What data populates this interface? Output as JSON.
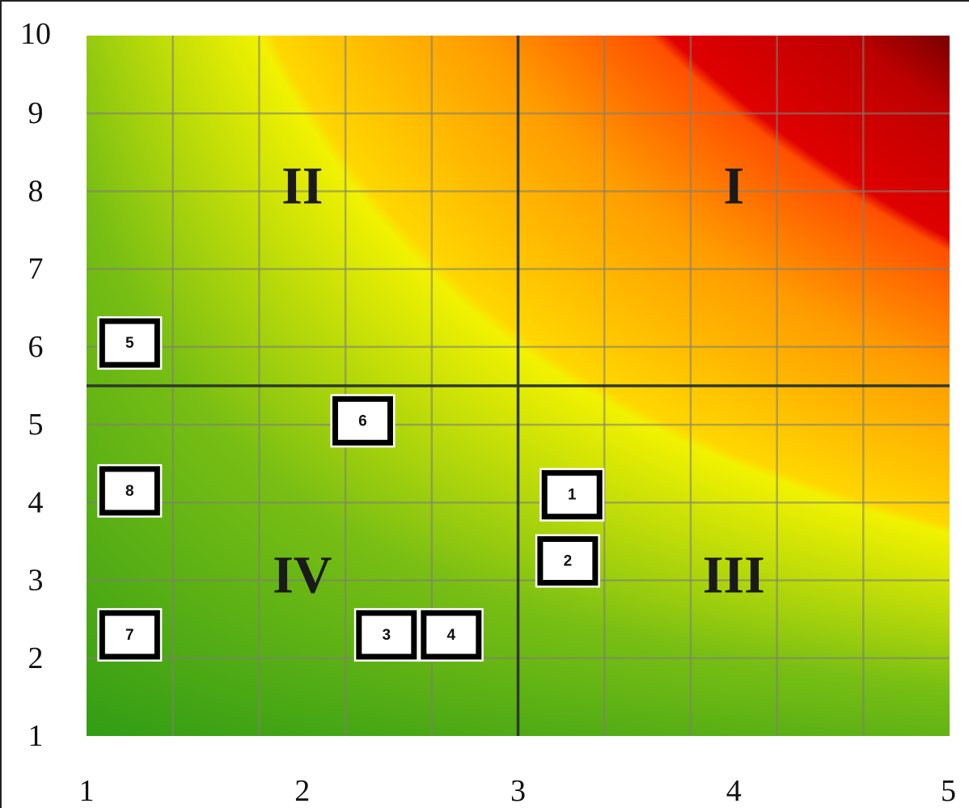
{
  "chart_data": {
    "type": "scatter",
    "title": "",
    "xlabel": "",
    "ylabel": "",
    "xlim": [
      1,
      5
    ],
    "ylim": [
      1,
      10
    ],
    "x_ticks": [
      "1",
      "2",
      "3",
      "4",
      "5"
    ],
    "y_ticks": [
      "1",
      "2",
      "3",
      "4",
      "5",
      "6",
      "7",
      "8",
      "9",
      "10"
    ],
    "divider_x": 3,
    "divider_y": 5.5,
    "grid": true,
    "background": "green-yellow-red risk gradient increasing toward high x and high y",
    "colors": {
      "low": "#0b8a16",
      "mid": "#f2f200",
      "high": "#ff9c00",
      "very_high": "#e00000",
      "extreme": "#7a0000"
    },
    "quadrants": [
      {
        "label": "I",
        "x": 4,
        "y": 8
      },
      {
        "label": "II",
        "x": 2,
        "y": 8
      },
      {
        "label": "III",
        "x": 4,
        "y": 3
      },
      {
        "label": "IV",
        "x": 2,
        "y": 3
      }
    ],
    "points": [
      {
        "label": "1",
        "x": 3.25,
        "y": 4.1
      },
      {
        "label": "2",
        "x": 3.23,
        "y": 3.25
      },
      {
        "label": "3",
        "x": 2.39,
        "y": 2.3
      },
      {
        "label": "4",
        "x": 2.69,
        "y": 2.3
      },
      {
        "label": "5",
        "x": 1.2,
        "y": 6.05
      },
      {
        "label": "6",
        "x": 2.28,
        "y": 5.05
      },
      {
        "label": "7",
        "x": 1.2,
        "y": 2.3
      },
      {
        "label": "8",
        "x": 1.2,
        "y": 4.15
      }
    ]
  }
}
